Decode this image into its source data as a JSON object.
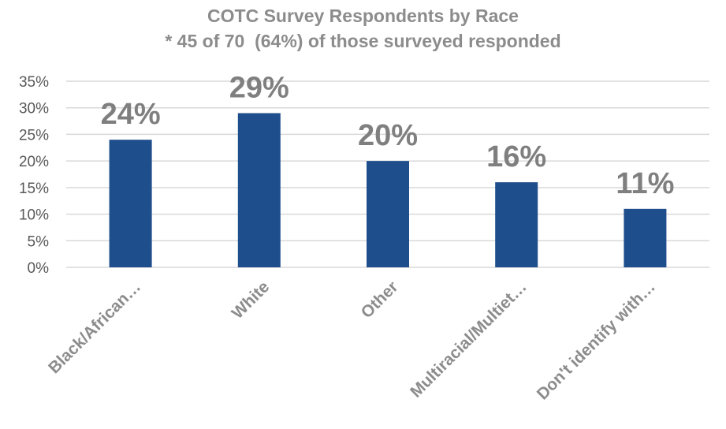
{
  "chart_data": {
    "type": "bar",
    "title": "COTC Survey Respondents by Race",
    "subtitle": "* 45 of 70  (64%) of those surveyed responded",
    "categories": [
      "Black/African…",
      "White",
      "Other",
      "Multiracial/Multiet…",
      "Don't identify with…"
    ],
    "values": [
      24,
      29,
      20,
      16,
      11
    ],
    "data_labels": [
      "24%",
      "29%",
      "20%",
      "16%",
      "11%"
    ],
    "y_ticks": [
      "0%",
      "5%",
      "10%",
      "15%",
      "20%",
      "25%",
      "30%",
      "35%"
    ],
    "ylim": [
      0,
      35
    ],
    "xlabel": "",
    "ylabel": "",
    "grid": true,
    "legend": "none",
    "colors": {
      "bar": "#1f4e8c",
      "grid": "#d9d9d9",
      "title": "#8c8c8c",
      "tick_text": "#595959",
      "data_label": "#7f7f7f"
    }
  }
}
